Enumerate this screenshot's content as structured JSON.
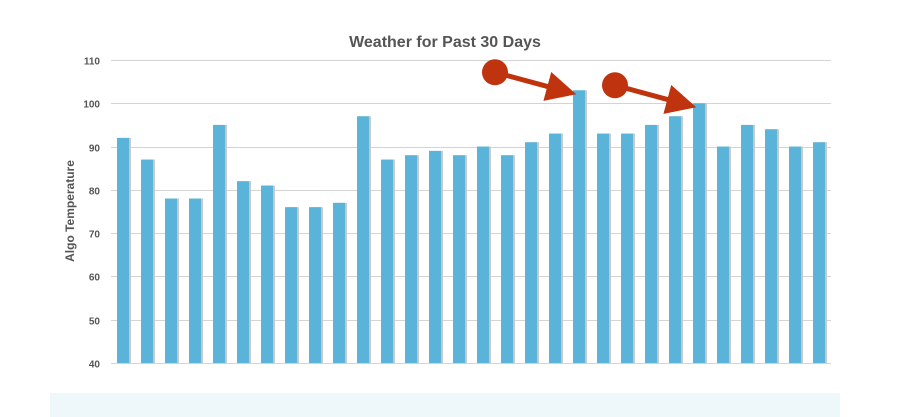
{
  "chart_data": {
    "type": "bar",
    "title": "Weather for Past 30 Days",
    "xlabel": "",
    "ylabel": "Algo Temperature",
    "ylim": [
      40,
      110
    ],
    "yticks": [
      40,
      50,
      60,
      70,
      80,
      90,
      100,
      110
    ],
    "grid": true,
    "legend": "none",
    "series": [
      {
        "values": [
          92,
          87,
          78,
          78,
          95,
          82,
          81,
          76,
          76,
          77,
          97,
          87,
          88,
          89,
          88,
          90,
          88,
          91,
          93,
          103,
          93,
          93,
          95,
          97,
          100,
          90,
          95,
          94,
          90,
          91
        ]
      }
    ],
    "annotations": [
      {
        "type": "arrow",
        "target_index": 19,
        "color": "#c0330f"
      },
      {
        "type": "arrow",
        "target_index": 24,
        "color": "#c0330f"
      }
    ],
    "colors": {
      "bar": "#5ab4d9",
      "bar_shadow": "#c8c8c8",
      "grid": "#d4d4d4",
      "text": "#555555",
      "arrow": "#c0330f"
    }
  }
}
